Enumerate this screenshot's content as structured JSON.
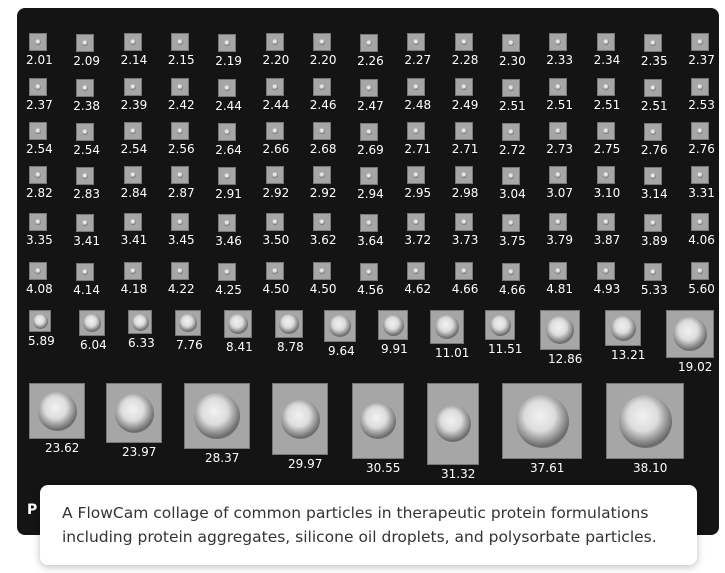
{
  "collage": {
    "rows": [
      [
        "2.01",
        "2.09",
        "2.14",
        "2.15",
        "2.19",
        "2.20",
        "2.20",
        "2.26",
        "2.27",
        "2.28",
        "2.30",
        "2.33",
        "2.34",
        "2.35",
        "2.37"
      ],
      [
        "2.37",
        "2.38",
        "2.39",
        "2.42",
        "2.44",
        "2.44",
        "2.46",
        "2.47",
        "2.48",
        "2.49",
        "2.51",
        "2.51",
        "2.51",
        "2.51",
        "2.53"
      ],
      [
        "2.54",
        "2.54",
        "2.54",
        "2.56",
        "2.64",
        "2.66",
        "2.68",
        "2.69",
        "2.71",
        "2.71",
        "2.72",
        "2.73",
        "2.75",
        "2.76",
        "2.76"
      ],
      [
        "2.82",
        "2.83",
        "2.84",
        "2.87",
        "2.91",
        "2.92",
        "2.92",
        "2.94",
        "2.95",
        "2.98",
        "3.04",
        "3.07",
        "3.10",
        "3.14",
        "3.31"
      ],
      [
        "3.35",
        "3.41",
        "3.41",
        "3.45",
        "3.46",
        "3.50",
        "3.62",
        "3.64",
        "3.72",
        "3.73",
        "3.75",
        "3.79",
        "3.87",
        "3.89",
        "4.06"
      ],
      [
        "4.08",
        "4.14",
        "4.18",
        "4.22",
        "4.25",
        "4.50",
        "4.50",
        "4.56",
        "4.62",
        "4.66",
        "4.66",
        "4.81",
        "4.93",
        "5.33",
        "5.60"
      ],
      [
        "5.89",
        "6.04",
        "6.33",
        "7.76",
        "8.41",
        "8.78",
        "9.64",
        "9.91",
        "11.01",
        "11.51",
        "12.86",
        "13.21",
        "19.02"
      ],
      [
        "23.62",
        "23.97",
        "28.37",
        "29.97",
        "30.55",
        "31.32",
        "37.61",
        "38.10"
      ]
    ],
    "hidden_label": "P"
  },
  "caption": "A FlowCam collage of common particles in therapeutic protein formulations including protein aggregates, silicone oil droplets, and polysorbate particles."
}
